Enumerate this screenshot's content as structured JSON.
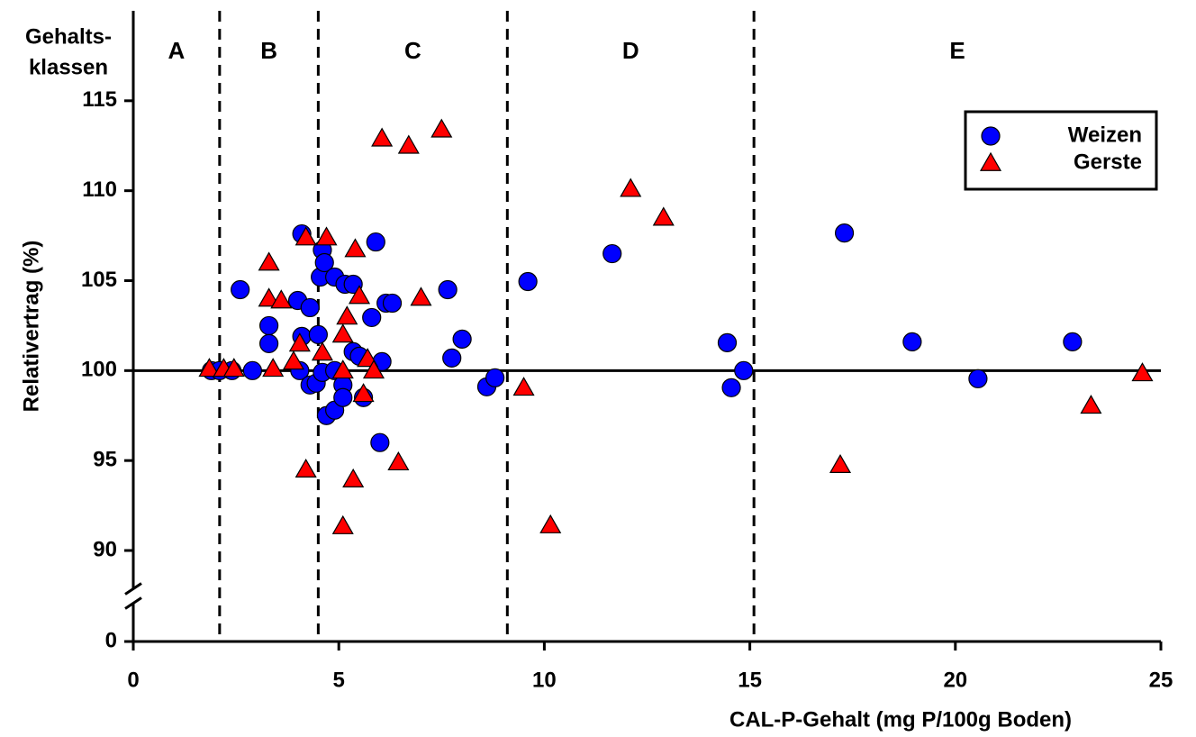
{
  "chart_data": {
    "type": "scatter",
    "xlabel": "CAL-P-Gehalt (mg P/100g Boden)",
    "ylabel": "Relativertrag (%)",
    "xlim": [
      0,
      25
    ],
    "ylim": [
      0,
      120
    ],
    "xticks": [
      0,
      5,
      10,
      15,
      20,
      25
    ],
    "yticks": [
      0,
      90,
      95,
      100,
      105,
      110,
      115
    ],
    "axis_break": true,
    "hline": 100,
    "class_title": [
      "Gehalts-",
      "klassen"
    ],
    "classes": [
      "A",
      "B",
      "C",
      "D",
      "E"
    ],
    "class_bounds": [
      2.1,
      4.5,
      9.1,
      15.1
    ],
    "legend": "upper right",
    "series": [
      {
        "name": "Weizen",
        "color": "#0000ff",
        "marker": "circle",
        "x": [
          1.9,
          2.1,
          2.4,
          2.9,
          2.6,
          3.3,
          3.3,
          4.1,
          4.0,
          4.3,
          4.1,
          4.05,
          4.3,
          4.45,
          4.5,
          4.55,
          4.6,
          4.65,
          4.6,
          4.7,
          4.9,
          4.9,
          4.9,
          5.1,
          5.1,
          5.15,
          5.35,
          5.35,
          5.6,
          5.5,
          5.9,
          5.8,
          6.0,
          6.05,
          6.15,
          6.3,
          7.65,
          7.75,
          8.0,
          8.6,
          8.8,
          9.6,
          11.65,
          14.45,
          14.55,
          14.85,
          17.3,
          18.95,
          20.55,
          22.85
        ],
        "values": [
          100,
          100,
          100,
          100,
          104.5,
          102.5,
          101.5,
          107.6,
          103.9,
          103.5,
          101.9,
          100,
          99.2,
          99.3,
          102,
          105.2,
          106.7,
          106,
          99.9,
          97.5,
          97.8,
          100,
          105.2,
          99.2,
          98.5,
          104.8,
          104.8,
          101.05,
          98.5,
          100.8,
          107.15,
          102.95,
          96,
          100.5,
          103.75,
          103.75,
          104.5,
          100.7,
          101.75,
          99.1,
          99.6,
          104.95,
          106.5,
          101.55,
          99.05,
          100,
          107.65,
          101.6,
          99.55,
          101.6
        ]
      },
      {
        "name": "Gerste",
        "color": "#ff0000",
        "marker": "triangle",
        "x": [
          1.85,
          2.2,
          2.45,
          3.3,
          3.3,
          3.6,
          3.4,
          3.9,
          4.05,
          4.2,
          4.2,
          4.7,
          4.6,
          5.1,
          5.2,
          5.1,
          5.1,
          5.35,
          5.4,
          5.5,
          5.6,
          5.7,
          5.85,
          6.05,
          6.45,
          6.7,
          7.0,
          7.5,
          9.5,
          10.15,
          12.1,
          12.9,
          17.2,
          23.3,
          24.55
        ],
        "values": [
          100.1,
          100.1,
          100.1,
          106,
          104,
          103.9,
          100.1,
          100.5,
          101.5,
          107.4,
          94.5,
          107.4,
          101,
          102,
          103,
          100,
          91.35,
          93.95,
          106.75,
          104.15,
          98.7,
          100.65,
          100,
          112.9,
          94.9,
          112.5,
          104.05,
          113.4,
          99.05,
          91.4,
          110.1,
          108.5,
          94.75,
          98.05,
          99.85
        ]
      }
    ]
  }
}
